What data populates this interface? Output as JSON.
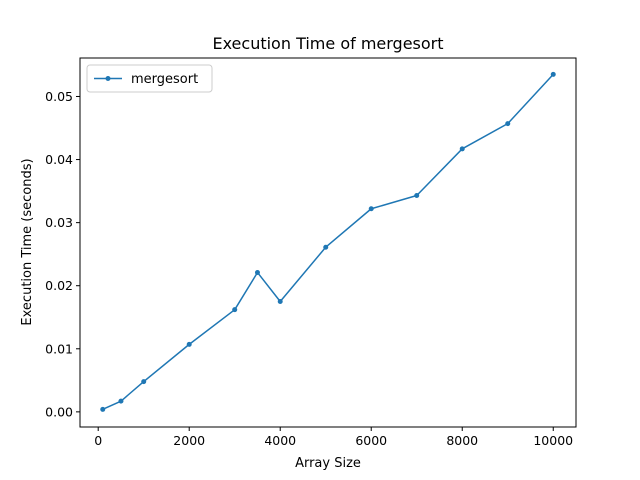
{
  "colors": {
    "series": "#1f77b4",
    "axis": "#000000",
    "legend_border": "#cccccc"
  },
  "chart_data": {
    "type": "line",
    "title": "Execution Time of mergesort",
    "xlabel": "Array Size",
    "ylabel": "Execution Time (seconds)",
    "xlim": [
      -400,
      10500
    ],
    "ylim": [
      -0.0024,
      0.0561
    ],
    "xticks": [
      0,
      2000,
      4000,
      6000,
      8000,
      10000
    ],
    "xtick_labels": [
      "0",
      "2000",
      "4000",
      "6000",
      "8000",
      "10000"
    ],
    "yticks": [
      0.0,
      0.01,
      0.02,
      0.03,
      0.04,
      0.05
    ],
    "ytick_labels": [
      "0.00",
      "0.01",
      "0.02",
      "0.03",
      "0.04",
      "0.05"
    ],
    "grid": false,
    "legend": "upper-left",
    "series": [
      {
        "name": "mergesort",
        "marker": "dot",
        "x": [
          100,
          500,
          1000,
          2000,
          3000,
          3500,
          4000,
          5000,
          6000,
          7000,
          8000,
          9000,
          10000
        ],
        "y": [
          0.0004,
          0.0017,
          0.0048,
          0.0107,
          0.0162,
          0.0221,
          0.0175,
          0.0261,
          0.0322,
          0.0343,
          0.0417,
          0.0457,
          0.0535
        ]
      }
    ]
  }
}
